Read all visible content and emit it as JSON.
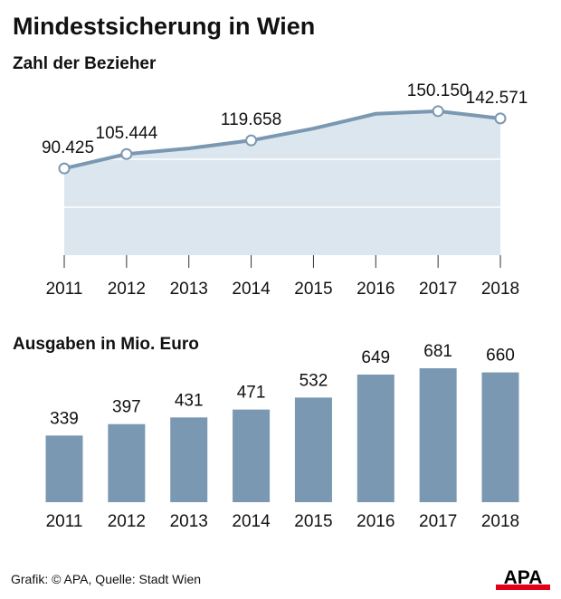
{
  "header": {
    "title": "Mindestsicherung in Wien"
  },
  "footer": {
    "credit": "Grafik: © APA, Quelle: Stadt Wien",
    "logo_text": "APA"
  },
  "colors": {
    "line": "#7a98b1",
    "area": "#dce6ef",
    "bar": "#7a98b1",
    "logo_red": "#e2001a"
  },
  "chart_data": [
    {
      "type": "area",
      "title": "Zahl der Bezieher",
      "categories": [
        "2011",
        "2012",
        "2013",
        "2014",
        "2015",
        "2016",
        "2017",
        "2018"
      ],
      "values": [
        90425,
        105444,
        111300,
        119658,
        132000,
        147400,
        150150,
        142571
      ],
      "data_labels": [
        "90.425",
        "105.444",
        "",
        "119.658",
        "",
        "",
        "150.150",
        "142.571"
      ],
      "markers": [
        true,
        true,
        false,
        true,
        false,
        false,
        true,
        true
      ],
      "ylim": [
        0,
        150000
      ],
      "gridlines": [
        50000,
        100000
      ],
      "grid": true
    },
    {
      "type": "bar",
      "title": "Ausgaben in Mio. Euro",
      "categories": [
        "2011",
        "2012",
        "2013",
        "2014",
        "2015",
        "2016",
        "2017",
        "2018"
      ],
      "values": [
        339,
        397,
        431,
        471,
        532,
        649,
        681,
        660
      ],
      "data_labels": [
        "339",
        "397",
        "431",
        "471",
        "532",
        "649",
        "681",
        "660"
      ],
      "ylim": [
        0,
        700
      ],
      "grid": false
    }
  ]
}
